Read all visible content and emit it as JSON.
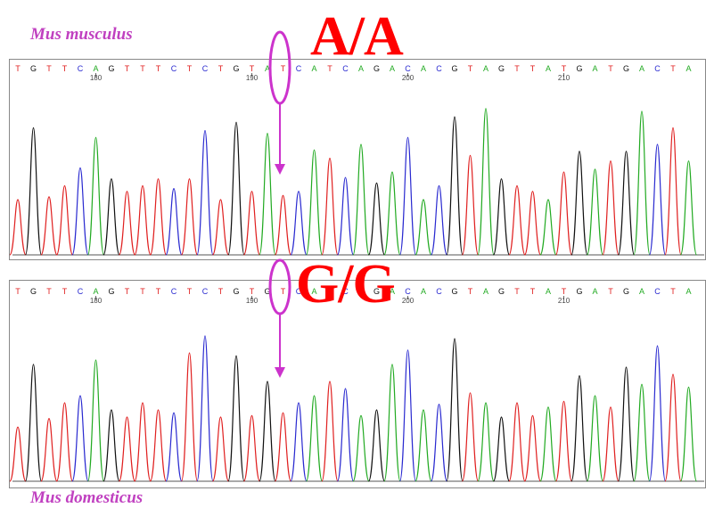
{
  "species_top": "Mus musculus",
  "species_bottom": "Mus domesticus",
  "genotype_top": "A/A",
  "genotype_bottom": "G/G",
  "colors": {
    "A": "#22aa22",
    "C": "#2a2ad0",
    "G": "#111111",
    "T": "#e02020",
    "marker": "#cc33cc",
    "genotype": "#ff0000"
  },
  "positions": [
    "180",
    "190",
    "200",
    "210"
  ],
  "top_trace": {
    "sequence": "TGTTCAGTTTCTCTGTATCATCAGACACGTAGTTATGATGACTA",
    "heights": [
      0.4,
      0.92,
      0.42,
      0.5,
      0.63,
      0.85,
      0.55,
      0.46,
      0.5,
      0.55,
      0.48,
      0.55,
      0.9,
      0.4,
      0.96,
      0.46,
      0.88,
      0.43,
      0.46,
      0.76,
      0.7,
      0.56,
      0.8,
      0.52,
      0.6,
      0.85,
      0.4,
      0.5,
      1.0,
      0.72,
      1.06,
      0.55,
      0.5,
      0.46,
      0.4,
      0.6,
      0.75,
      0.62,
      0.68,
      0.75,
      1.04,
      0.8,
      0.92,
      0.68
    ]
  },
  "bottom_trace": {
    "sequence": "TGTTCAGTTTCTCTGTGTCATCAGACACGTAGTTATGATGACTA",
    "heights": [
      0.38,
      0.82,
      0.44,
      0.55,
      0.6,
      0.85,
      0.5,
      0.45,
      0.55,
      0.5,
      0.48,
      0.9,
      1.02,
      0.45,
      0.88,
      0.46,
      0.7,
      0.48,
      0.55,
      0.6,
      0.7,
      0.65,
      0.46,
      0.5,
      0.82,
      0.92,
      0.5,
      0.54,
      1.0,
      0.62,
      0.55,
      0.45,
      0.55,
      0.46,
      0.52,
      0.56,
      0.74,
      0.6,
      0.52,
      0.8,
      0.68,
      0.95,
      0.75,
      0.66
    ]
  }
}
